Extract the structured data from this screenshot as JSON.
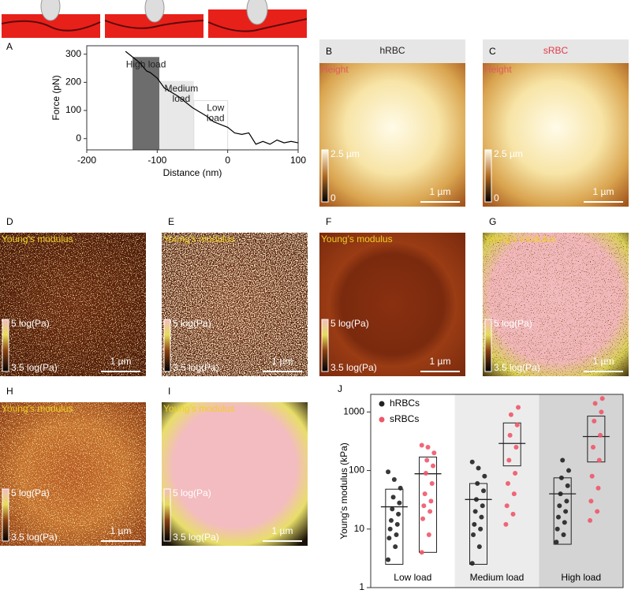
{
  "figure": {
    "panels": [
      {
        "label": "B",
        "title": "hRBC",
        "channel": "Height",
        "colorbar": [
          "2.5 µm",
          "0"
        ],
        "scale": "1 µm"
      },
      {
        "label": "C",
        "title": "sRBC",
        "channel": "Height",
        "colorbar": [
          "2.5 µm",
          "0"
        ],
        "scale": "1 µm"
      },
      {
        "label": "D",
        "channel": "Young's modulus",
        "colorbar": [
          "5 log(Pa)",
          "3.5 log(Pa)"
        ],
        "scale": "1 µm"
      },
      {
        "label": "E",
        "channel": "Young's modulus",
        "colorbar": [
          "5 log(Pa)",
          "3.5 log(Pa)"
        ],
        "scale": "1 µm"
      },
      {
        "label": "F",
        "channel": "Young's modulus",
        "colorbar": [
          "5 log(Pa)",
          "3.5 log(Pa)"
        ],
        "scale": "1 µm"
      },
      {
        "label": "G",
        "channel": "Young's modulus",
        "colorbar": [
          "5 log(Pa)",
          "3.5 log(Pa)"
        ],
        "scale": "1 µm"
      },
      {
        "label": "H",
        "channel": "Young's modulus",
        "colorbar": [
          "5 log(Pa)",
          "3.5 log(Pa)"
        ],
        "scale": "1 µm"
      },
      {
        "label": "I",
        "channel": "Young's modulus",
        "colorbar": [
          "5 log(Pa)",
          "3.5 log(Pa)"
        ],
        "scale": "1 µm"
      }
    ]
  },
  "chart_data": [
    {
      "type": "line",
      "label": "A",
      "xlabel": "Distance (nm)",
      "ylabel": "Force (pN)",
      "x": [
        -145,
        -135,
        -125,
        -115,
        -110,
        -100,
        -90,
        -80,
        -70,
        -60,
        -50,
        -40,
        -30,
        -20,
        -10,
        0,
        10,
        20,
        30,
        40,
        50,
        60,
        70,
        80,
        90,
        100
      ],
      "values": [
        310,
        290,
        270,
        240,
        235,
        215,
        180,
        165,
        150,
        130,
        110,
        95,
        80,
        60,
        50,
        40,
        20,
        15,
        20,
        -20,
        -10,
        -20,
        -5,
        -15,
        -10,
        -15
      ],
      "color": "#000000",
      "xlim": [
        -200,
        100
      ],
      "xticks": [
        -200,
        -100,
        0,
        100
      ],
      "ylim": [
        -40,
        330
      ],
      "yticks": [
        0,
        100,
        200,
        300
      ],
      "regions": [
        {
          "lines": [
            "High load"
          ],
          "x": [
            -135,
            -97
          ],
          "top": 290,
          "color": "#6d6d6d"
        },
        {
          "lines": [
            "Medium",
            "load"
          ],
          "x": [
            -97,
            -48
          ],
          "top": 205,
          "color": "#e8e8e8"
        },
        {
          "lines": [
            "Low",
            "load"
          ],
          "x": [
            -48,
            0
          ],
          "top": 135,
          "color": "#ffffff"
        }
      ]
    },
    {
      "type": "box",
      "label": "J",
      "ylabel": "Young's modulus (kPa)",
      "categories": [
        "Low load",
        "Medium load",
        "High load"
      ],
      "category_colors": [
        "#ffffff",
        "#ececec",
        "#d4d4d4"
      ],
      "log": true,
      "ylim": [
        1,
        2000
      ],
      "yticks": [
        1,
        10,
        100,
        1000
      ],
      "series": [
        {
          "name": "hRBCs",
          "color": "#222222",
          "boxes": [
            {
              "low": 2.5,
              "high": 48,
              "mean": 24,
              "points": [
                3,
                5,
                7,
                8,
                10,
                12,
                14,
                18,
                22,
                28,
                35,
                50,
                70,
                95
              ]
            },
            {
              "low": 2.5,
              "high": 60,
              "mean": 32,
              "points": [
                2.6,
                5,
                8,
                10,
                12,
                16,
                20,
                25,
                32,
                45,
                60,
                80,
                110,
                140
              ]
            },
            {
              "low": 5.5,
              "high": 75,
              "mean": 40,
              "points": [
                6,
                8,
                10,
                13,
                16,
                20,
                25,
                30,
                40,
                55,
                75,
                100,
                150
              ]
            }
          ]
        },
        {
          "name": "sRBCs",
          "color": "#f0566a",
          "boxes": [
            {
              "low": 4,
              "high": 170,
              "mean": 88,
              "points": [
                4,
                8,
                15,
                20,
                25,
                30,
                40,
                60,
                90,
                120,
                150,
                200,
                250,
                270
              ]
            },
            {
              "low": 120,
              "high": 650,
              "mean": 290,
              "points": [
                12,
                18,
                25,
                40,
                60,
                90,
                150,
                250,
                400,
                600,
                900,
                1200
              ]
            },
            {
              "low": 140,
              "high": 850,
              "mean": 380,
              "points": [
                14,
                20,
                30,
                50,
                80,
                150,
                250,
                400,
                700,
                1000,
                1400,
                1700
              ]
            }
          ]
        }
      ]
    }
  ]
}
